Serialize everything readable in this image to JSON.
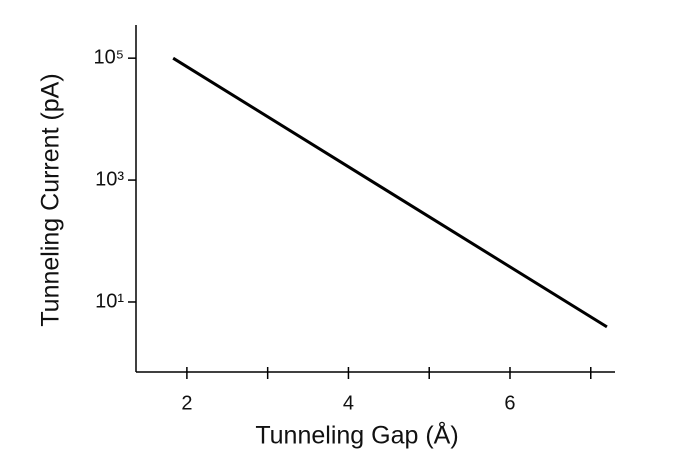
{
  "chart_data": {
    "type": "line",
    "xlabel": "Tunneling Gap (Å)",
    "ylabel": "Tunneling Current (pA)",
    "x": [
      1.83,
      7.2
    ],
    "series": [
      {
        "color": "#000000",
        "values": [
          100000,
          3.9
        ]
      }
    ],
    "xlim": [
      1.37,
      7.3
    ],
    "xticks": [
      2,
      4,
      6
    ],
    "xminor_ticks": [
      3,
      5,
      7
    ],
    "ylim": [
      0.71,
      350000
    ],
    "yscale": "log",
    "yticks": [
      {
        "value": 10,
        "label": "10¹"
      },
      {
        "value": 1000,
        "label": "10³"
      },
      {
        "value": 100000,
        "label": "10⁵"
      }
    ],
    "grid": false
  }
}
